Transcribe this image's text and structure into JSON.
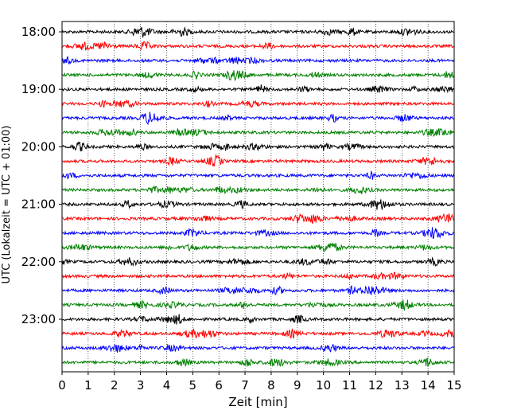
{
  "chart_data": {
    "type": "line",
    "title": "",
    "xlabel": "Zeit  [min]",
    "ylabel": "UTC (Lokalzeit = UTC + 01:00)",
    "xlim": [
      0,
      15
    ],
    "x_ticks": [
      "0",
      "1",
      "2",
      "3",
      "4",
      "5",
      "6",
      "7",
      "8",
      "9",
      "10",
      "11",
      "12",
      "13",
      "14",
      "15"
    ],
    "y_tick_labels": [
      "18:00",
      "19:00",
      "20:00",
      "21:00",
      "22:00",
      "23:00"
    ],
    "y_tick_rows": [
      0,
      4,
      8,
      12,
      16,
      20
    ],
    "grid": {
      "vertical_dotted": true,
      "horizontal": false
    },
    "trace_colors": [
      "#000000",
      "#ff0000",
      "#0000ff",
      "#008000"
    ],
    "traces": [
      {
        "label": "18:00",
        "color": "#000000"
      },
      {
        "label": "18:15",
        "color": "#ff0000"
      },
      {
        "label": "18:30",
        "color": "#0000ff"
      },
      {
        "label": "18:45",
        "color": "#008000"
      },
      {
        "label": "19:00",
        "color": "#000000"
      },
      {
        "label": "19:15",
        "color": "#ff0000"
      },
      {
        "label": "19:30",
        "color": "#0000ff"
      },
      {
        "label": "19:45",
        "color": "#008000"
      },
      {
        "label": "20:00",
        "color": "#000000"
      },
      {
        "label": "20:15",
        "color": "#ff0000"
      },
      {
        "label": "20:30",
        "color": "#0000ff"
      },
      {
        "label": "20:45",
        "color": "#008000"
      },
      {
        "label": "21:00",
        "color": "#000000"
      },
      {
        "label": "21:15",
        "color": "#ff0000"
      },
      {
        "label": "21:30",
        "color": "#0000ff"
      },
      {
        "label": "21:45",
        "color": "#008000"
      },
      {
        "label": "22:00",
        "color": "#000000"
      },
      {
        "label": "22:15",
        "color": "#ff0000"
      },
      {
        "label": "22:30",
        "color": "#0000ff"
      },
      {
        "label": "22:45",
        "color": "#008000"
      },
      {
        "label": "23:00",
        "color": "#000000"
      },
      {
        "label": "23:15",
        "color": "#ff0000"
      },
      {
        "label": "23:30",
        "color": "#0000ff"
      },
      {
        "label": "23:45",
        "color": "#008000"
      }
    ]
  }
}
